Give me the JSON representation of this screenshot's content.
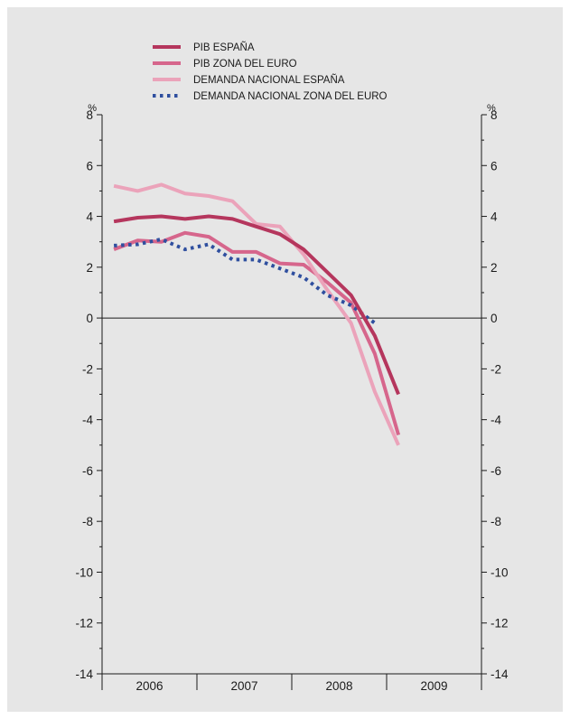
{
  "chart_data": {
    "type": "line",
    "unit_left": "%",
    "unit_right": "%",
    "ylim": [
      -14,
      8
    ],
    "yticks": [
      8,
      6,
      4,
      2,
      0,
      -2,
      -4,
      -6,
      -8,
      -10,
      -12,
      -14
    ],
    "xlim": [
      2006.0,
      2010.0
    ],
    "x_categories": [
      "2006",
      "2007",
      "2008",
      "2009"
    ],
    "grid": false,
    "legend_position": "top-left",
    "series": [
      {
        "name": "PIB ESPAÑA",
        "color": "#b5365d",
        "style": "solid",
        "x": [
          2006.125,
          2006.375,
          2006.625,
          2006.875,
          2007.125,
          2007.375,
          2007.625,
          2007.875,
          2008.125,
          2008.375,
          2008.625,
          2008.875,
          2009.125
        ],
        "y": [
          3.8,
          3.95,
          4.0,
          3.9,
          4.0,
          3.9,
          3.6,
          3.3,
          2.7,
          1.8,
          0.9,
          -0.7,
          -3.0
        ]
      },
      {
        "name": "PIB ZONA DEL EURO",
        "color": "#d6668c",
        "style": "solid",
        "x": [
          2006.125,
          2006.375,
          2006.625,
          2006.875,
          2007.125,
          2007.375,
          2007.625,
          2007.875,
          2008.125,
          2008.375,
          2008.625,
          2008.875,
          2009.125
        ],
        "y": [
          2.7,
          3.05,
          3.0,
          3.35,
          3.2,
          2.6,
          2.6,
          2.15,
          2.1,
          1.4,
          0.6,
          -1.4,
          -4.6
        ]
      },
      {
        "name": "DEMANDA NACIONAL ESPAÑA",
        "color": "#eba3ba",
        "style": "solid",
        "x": [
          2006.125,
          2006.375,
          2006.625,
          2006.875,
          2007.125,
          2007.375,
          2007.625,
          2007.875,
          2008.125,
          2008.375,
          2008.625,
          2008.875,
          2009.125
        ],
        "y": [
          5.2,
          5.0,
          5.25,
          4.9,
          4.8,
          4.6,
          3.7,
          3.6,
          2.5,
          1.1,
          -0.2,
          -2.9,
          -5.0
        ]
      },
      {
        "name": "DEMANDA NACIONAL ZONA DEL EURO",
        "color": "#2f4f9f",
        "style": "dotted",
        "x": [
          2006.125,
          2006.375,
          2006.625,
          2006.875,
          2007.125,
          2007.375,
          2007.625,
          2007.875,
          2008.125,
          2008.375,
          2008.625,
          2008.875
        ],
        "y": [
          2.85,
          2.9,
          3.1,
          2.7,
          2.9,
          2.3,
          2.3,
          1.95,
          1.6,
          0.9,
          0.5,
          -0.2
        ]
      }
    ]
  }
}
